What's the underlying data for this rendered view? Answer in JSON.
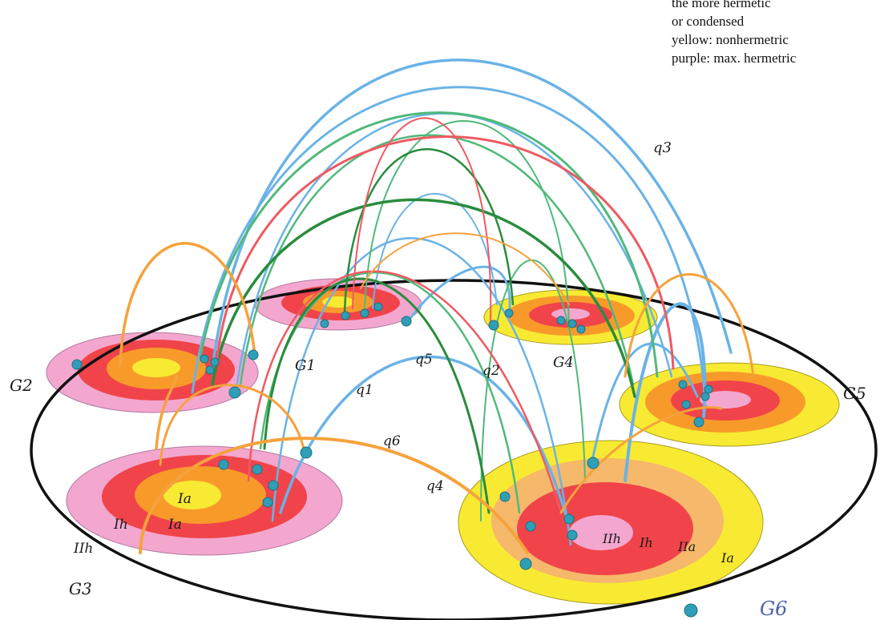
{
  "legend": {
    "line1": "the more hermetic",
    "line2": "or condensed",
    "line3": "yellow: nonhermetric",
    "line4": "purple: max. hermetric"
  },
  "colors": {
    "purple": "#f3a7cf",
    "red": "#f0444a",
    "orange": "#f89a2a",
    "yellow": "#f8ea32",
    "arc_blue": "#6ab3e6",
    "arc_green": "#4fb97a",
    "arc_dark_green": "#2a8c3e",
    "arc_red": "#ee5a62",
    "arc_orange": "#f6a23c",
    "node_teal": "#2f9fb7"
  },
  "group_labels": {
    "g1": "G1",
    "g2": "G2",
    "g3": "G3",
    "g4": "G4",
    "g5": "G5",
    "g6": "G6"
  },
  "arc_labels": {
    "q1": "q1",
    "q2": "q2",
    "q3": "q3",
    "q4": "q4",
    "q5": "q5",
    "q6": "q6"
  },
  "ring_labels": {
    "g3_ia": "Ia",
    "g3_ih": "Ih",
    "g3_ia2": "Ia",
    "g3_iih": "IIh",
    "g6_iih": "IIh",
    "g6_ih": "Ih",
    "g6_iia": "IIa",
    "g6_ia": "Ia"
  }
}
